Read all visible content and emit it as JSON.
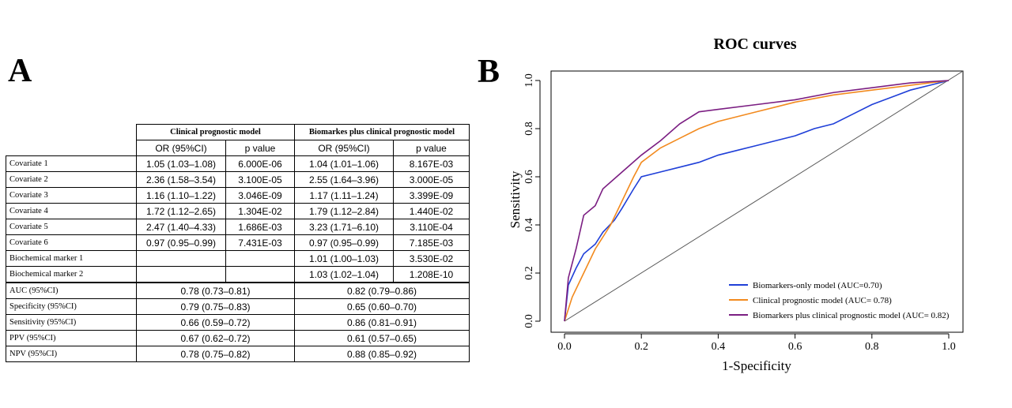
{
  "panel_a": {
    "label": "A",
    "table": {
      "groups": [
        "Clinical prognostic model",
        "Biomarkes plus clinical prognostic model"
      ],
      "subheaders": [
        "OR (95%CI)",
        "p value",
        "OR (95%CI)",
        "p value"
      ],
      "rows": [
        [
          "Covariate 1",
          "1.05 (1.03–1.08)",
          "6.000E-06",
          "1.04 (1.01–1.06)",
          "8.167E-03"
        ],
        [
          "Covariate 2",
          "2.36 (1.58–3.54)",
          "3.100E-05",
          "2.55 (1.64–3.96)",
          "3.000E-05"
        ],
        [
          "Covariate 3",
          "1.16 (1.10–1.22)",
          "3.046E-09",
          "1.17 (1.11–1.24)",
          "3.399E-09"
        ],
        [
          "Covariate 4",
          "1.72 (1.12–2.65)",
          "1.304E-02",
          "1.79 (1.12–2.84)",
          "1.440E-02"
        ],
        [
          "Covariate 5",
          "2.47 (1.40–4.33)",
          "1.686E-03",
          "3.23 (1.71–6.10)",
          "3.110E-04"
        ],
        [
          "Covariate 6",
          "0.97 (0.95–0.99)",
          "7.431E-03",
          "0.97 (0.95–0.99)",
          "7.185E-03"
        ],
        [
          "Biochemical marker 1",
          null,
          null,
          "1.01 (1.00–1.03)",
          "3.530E-02"
        ],
        [
          "Biochemical marker 2",
          null,
          null,
          "1.03 (1.02–1.04)",
          "1.208E-10"
        ]
      ],
      "metrics": [
        [
          "AUC (95%CI)",
          "0.78 (0.73–0.81)",
          "0.82 (0.79–0.86)"
        ],
        [
          "Specificity (95%CI)",
          "0.79 (0.75–0.83)",
          "0.65 (0.60–0.70)"
        ],
        [
          "Sensitivity (95%CI)",
          "0.66 (0.59–0.72)",
          "0.86 (0.81–0.91)"
        ],
        [
          "PPV (95%CI)",
          "0.67 (0.62–0.72)",
          "0.61 (0.57–0.65)"
        ],
        [
          "NPV (95%CI)",
          "0.78 (0.75–0.82)",
          "0.88 (0.85–0.92)"
        ]
      ]
    }
  },
  "chart_data": {
    "type": "line",
    "panel_label": "B",
    "title": "ROC curves",
    "x_label": "1-Specificity",
    "y_label": "Sensitivity",
    "xlim": [
      0,
      1
    ],
    "ylim": [
      0,
      1
    ],
    "xticks": [
      {
        "value": 0,
        "label": "0.0"
      },
      0.2,
      0.4,
      0.6,
      0.8,
      {
        "value": 1,
        "label": "1.0"
      }
    ],
    "yticks": [
      {
        "value": 0,
        "label": "0.0"
      },
      0.2,
      0.4,
      0.6,
      0.8,
      {
        "value": 1,
        "label": "1.0"
      }
    ],
    "grid": false,
    "legend": "bottom-right",
    "series": [
      {
        "name": "Biomarkers-only model (AUC=0.70)",
        "color": "#1f3fd8",
        "x": [
          0,
          0.01,
          0.03,
          0.05,
          0.08,
          0.1,
          0.13,
          0.15,
          0.18,
          0.2,
          0.25,
          0.3,
          0.35,
          0.4,
          0.45,
          0.5,
          0.55,
          0.6,
          0.65,
          0.7,
          0.75,
          0.8,
          0.85,
          0.9,
          0.95,
          1
        ],
        "values": [
          0,
          0.15,
          0.22,
          0.28,
          0.32,
          0.37,
          0.42,
          0.47,
          0.55,
          0.6,
          0.62,
          0.64,
          0.66,
          0.69,
          0.71,
          0.73,
          0.75,
          0.77,
          0.8,
          0.82,
          0.86,
          0.9,
          0.93,
          0.96,
          0.98,
          1
        ]
      },
      {
        "name": "Clinical prognostic model (AUC= 0.78)",
        "color": "#f28a1e",
        "x": [
          0,
          0.02,
          0.05,
          0.08,
          0.12,
          0.15,
          0.18,
          0.2,
          0.25,
          0.3,
          0.35,
          0.4,
          0.45,
          0.5,
          0.55,
          0.6,
          0.7,
          0.8,
          0.9,
          1
        ],
        "values": [
          0,
          0.1,
          0.2,
          0.3,
          0.4,
          0.5,
          0.6,
          0.66,
          0.72,
          0.76,
          0.8,
          0.83,
          0.85,
          0.87,
          0.89,
          0.91,
          0.94,
          0.96,
          0.98,
          1
        ]
      },
      {
        "name": "Biomarkers plus clinical prognostic model (AUC= 0.82)",
        "color": "#7b1e82",
        "x": [
          0,
          0.01,
          0.03,
          0.05,
          0.08,
          0.1,
          0.15,
          0.2,
          0.25,
          0.3,
          0.35,
          0.4,
          0.5,
          0.6,
          0.7,
          0.8,
          0.9,
          1
        ],
        "values": [
          0,
          0.18,
          0.3,
          0.44,
          0.48,
          0.55,
          0.62,
          0.69,
          0.75,
          0.82,
          0.87,
          0.88,
          0.9,
          0.92,
          0.95,
          0.97,
          0.99,
          1
        ]
      }
    ]
  }
}
